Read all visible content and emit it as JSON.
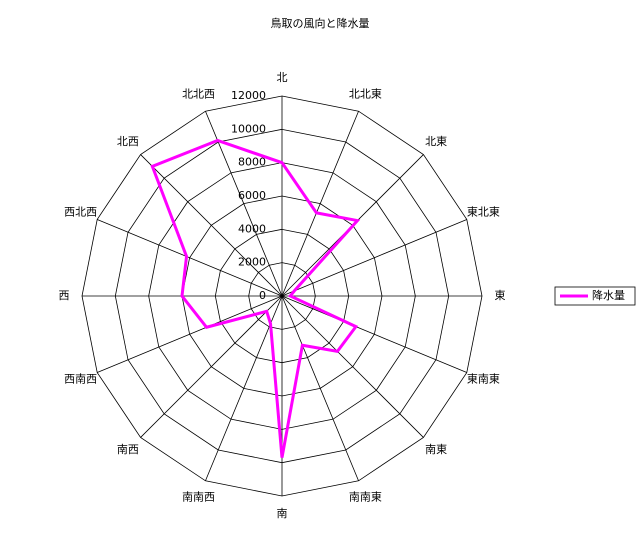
{
  "chart_data": {
    "type": "radar",
    "title": "鳥取の風向と降水量",
    "categories": [
      "北",
      "北北東",
      "北東",
      "東北東",
      "東",
      "東南東",
      "南東",
      "南南東",
      "南",
      "南南西",
      "南西",
      "西南西",
      "西",
      "西北西",
      "北西",
      "北北西"
    ],
    "series": [
      {
        "name": "降水量",
        "color": "#ff00ff",
        "values": [
          8000,
          5400,
          6400,
          800,
          500,
          4800,
          4700,
          3200,
          9700,
          1800,
          1300,
          4900,
          6000,
          6200,
          11000,
          10100
        ]
      }
    ],
    "ylim": [
      0,
      12000
    ],
    "yticks": [
      0,
      2000,
      4000,
      6000,
      8000,
      10000,
      12000
    ],
    "grid": true,
    "legend": "right"
  }
}
